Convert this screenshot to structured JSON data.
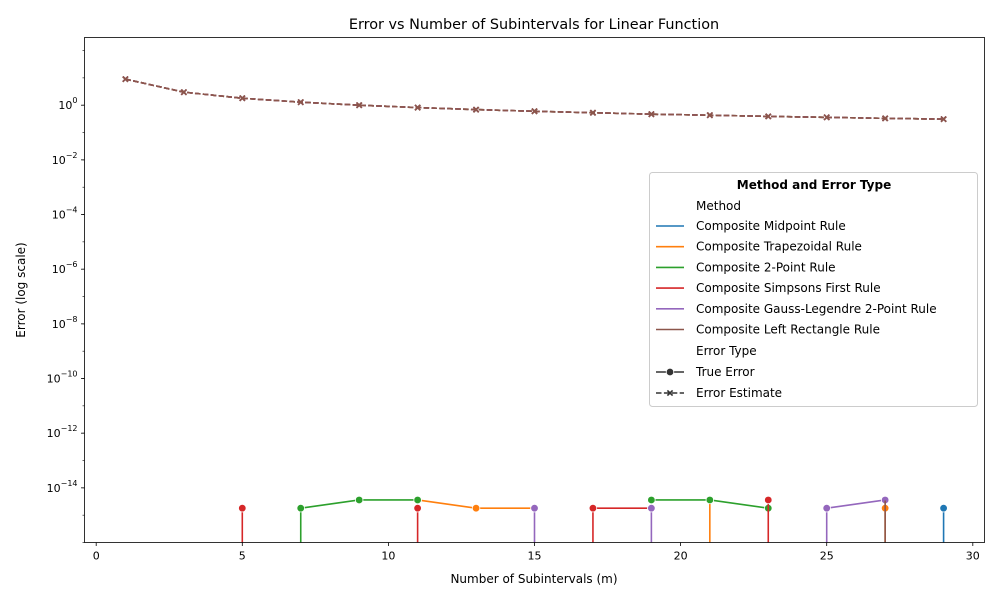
{
  "chart_data": {
    "type": "line",
    "title": "Error vs Number of Subintervals for Linear Function",
    "xlabel": "Number of Subintervals (m)",
    "ylabel": "Error (log scale)",
    "xlim": [
      -0.4,
      30.4
    ],
    "ylim": [
      1e-16,
      300
    ],
    "yscale": "log",
    "grid": false,
    "x_ticks": [
      {
        "value": 0,
        "label": "0"
      },
      {
        "value": 5,
        "label": "5"
      },
      {
        "value": 10,
        "label": "10"
      },
      {
        "value": 15,
        "label": "15"
      },
      {
        "value": 20,
        "label": "20"
      },
      {
        "value": 25,
        "label": "25"
      },
      {
        "value": 30,
        "label": "30"
      }
    ],
    "y_ticks": [
      {
        "value": 1,
        "base": "10",
        "exp": "0"
      },
      {
        "value": 0.01,
        "base": "10",
        "exp": "−2"
      },
      {
        "value": 0.0001,
        "base": "10",
        "exp": "−4"
      },
      {
        "value": 1e-06,
        "base": "10",
        "exp": "−6"
      },
      {
        "value": 1e-08,
        "base": "10",
        "exp": "−8"
      },
      {
        "value": 1e-10,
        "base": "10",
        "exp": "−10"
      },
      {
        "value": 1e-12,
        "base": "10",
        "exp": "−12"
      },
      {
        "value": 1e-14,
        "base": "10",
        "exp": "−14"
      }
    ],
    "legend": {
      "title": "Method and Error Type",
      "placement": "center-right",
      "method_heading": "Method",
      "error_heading": "Error Type",
      "error_types": [
        {
          "label": "True Error",
          "marker": "circle",
          "dash": "solid"
        },
        {
          "label": "Error Estimate",
          "marker": "x",
          "dash": "dashed"
        }
      ]
    },
    "series": [
      {
        "name": "Composite Midpoint Rule",
        "color": "#1f77b4",
        "true_error": [
          [
            29,
            1.8e-15
          ]
        ],
        "drops_to_zero": [
          29
        ],
        "error_estimate": [
          [
            1,
            9
          ],
          [
            3,
            3
          ],
          [
            5,
            1.8
          ],
          [
            7,
            1.29
          ],
          [
            9,
            1
          ],
          [
            11,
            0.82
          ],
          [
            13,
            0.69
          ],
          [
            15,
            0.6
          ],
          [
            17,
            0.53
          ],
          [
            19,
            0.47
          ],
          [
            21,
            0.43
          ],
          [
            23,
            0.39
          ],
          [
            25,
            0.36
          ],
          [
            27,
            0.33
          ],
          [
            29,
            0.31
          ]
        ]
      },
      {
        "name": "Composite Trapezoidal Rule",
        "color": "#ff7f0e",
        "true_error": [
          [
            11,
            3.6e-15
          ],
          [
            13,
            1.8e-15
          ],
          [
            15,
            1.8e-15
          ],
          [
            27,
            1.8e-15
          ]
        ],
        "drops_to_zero": [
          21,
          27
        ],
        "error_estimate": [
          [
            1,
            9
          ],
          [
            3,
            3
          ],
          [
            5,
            1.8
          ],
          [
            7,
            1.29
          ],
          [
            9,
            1
          ],
          [
            11,
            0.82
          ],
          [
            13,
            0.69
          ],
          [
            15,
            0.6
          ],
          [
            17,
            0.53
          ],
          [
            19,
            0.47
          ],
          [
            21,
            0.43
          ],
          [
            23,
            0.39
          ],
          [
            25,
            0.36
          ],
          [
            27,
            0.33
          ],
          [
            29,
            0.31
          ]
        ]
      },
      {
        "name": "Composite 2-Point Rule",
        "color": "#2ca02c",
        "true_error": [
          [
            7,
            1.8e-15
          ],
          [
            9,
            3.6e-15
          ],
          [
            11,
            3.6e-15
          ],
          [
            19,
            3.6e-15
          ],
          [
            21,
            3.6e-15
          ],
          [
            23,
            1.8e-15
          ]
        ],
        "drops_to_zero": [
          7
        ],
        "error_estimate": [
          [
            1,
            9
          ],
          [
            3,
            3
          ],
          [
            5,
            1.8
          ],
          [
            7,
            1.29
          ],
          [
            9,
            1
          ],
          [
            11,
            0.82
          ],
          [
            13,
            0.69
          ],
          [
            15,
            0.6
          ],
          [
            17,
            0.53
          ],
          [
            19,
            0.47
          ],
          [
            21,
            0.43
          ],
          [
            23,
            0.39
          ],
          [
            25,
            0.36
          ],
          [
            27,
            0.33
          ],
          [
            29,
            0.31
          ]
        ]
      },
      {
        "name": "Composite Simpsons First Rule",
        "color": "#d62728",
        "true_error": [
          [
            5,
            1.8e-15
          ],
          [
            11,
            1.8e-15
          ],
          [
            17,
            1.8e-15
          ],
          [
            19,
            1.8e-15
          ],
          [
            23,
            3.6e-15
          ]
        ],
        "drops_to_zero": [
          5,
          11,
          17,
          23
        ],
        "error_estimate": [
          [
            1,
            9
          ],
          [
            3,
            3
          ],
          [
            5,
            1.8
          ],
          [
            7,
            1.29
          ],
          [
            9,
            1
          ],
          [
            11,
            0.82
          ],
          [
            13,
            0.69
          ],
          [
            15,
            0.6
          ],
          [
            17,
            0.53
          ],
          [
            19,
            0.47
          ],
          [
            21,
            0.43
          ],
          [
            23,
            0.39
          ],
          [
            25,
            0.36
          ],
          [
            27,
            0.33
          ],
          [
            29,
            0.31
          ]
        ]
      },
      {
        "name": "Composite Gauss-Legendre 2-Point Rule",
        "color": "#9467bd",
        "true_error": [
          [
            15,
            1.8e-15
          ],
          [
            19,
            1.8e-15
          ],
          [
            25,
            1.8e-15
          ],
          [
            27,
            3.6e-15
          ]
        ],
        "drops_to_zero": [
          15,
          19,
          25
        ],
        "error_estimate": [
          [
            1,
            9
          ],
          [
            3,
            3
          ],
          [
            5,
            1.8
          ],
          [
            7,
            1.29
          ],
          [
            9,
            1
          ],
          [
            11,
            0.82
          ],
          [
            13,
            0.69
          ],
          [
            15,
            0.6
          ],
          [
            17,
            0.53
          ],
          [
            19,
            0.47
          ],
          [
            21,
            0.43
          ],
          [
            23,
            0.39
          ],
          [
            25,
            0.36
          ],
          [
            27,
            0.33
          ],
          [
            29,
            0.31
          ]
        ]
      },
      {
        "name": "Composite Left Rectangle Rule",
        "color": "#8c564b",
        "true_error": [],
        "drops_to_zero": [
          27
        ],
        "error_estimate": [
          [
            1,
            9
          ],
          [
            3,
            3
          ],
          [
            5,
            1.8
          ],
          [
            7,
            1.29
          ],
          [
            9,
            1
          ],
          [
            11,
            0.82
          ],
          [
            13,
            0.69
          ],
          [
            15,
            0.6
          ],
          [
            17,
            0.53
          ],
          [
            19,
            0.47
          ],
          [
            21,
            0.43
          ],
          [
            23,
            0.39
          ],
          [
            25,
            0.36
          ],
          [
            27,
            0.33
          ],
          [
            29,
            0.31
          ]
        ]
      }
    ]
  }
}
